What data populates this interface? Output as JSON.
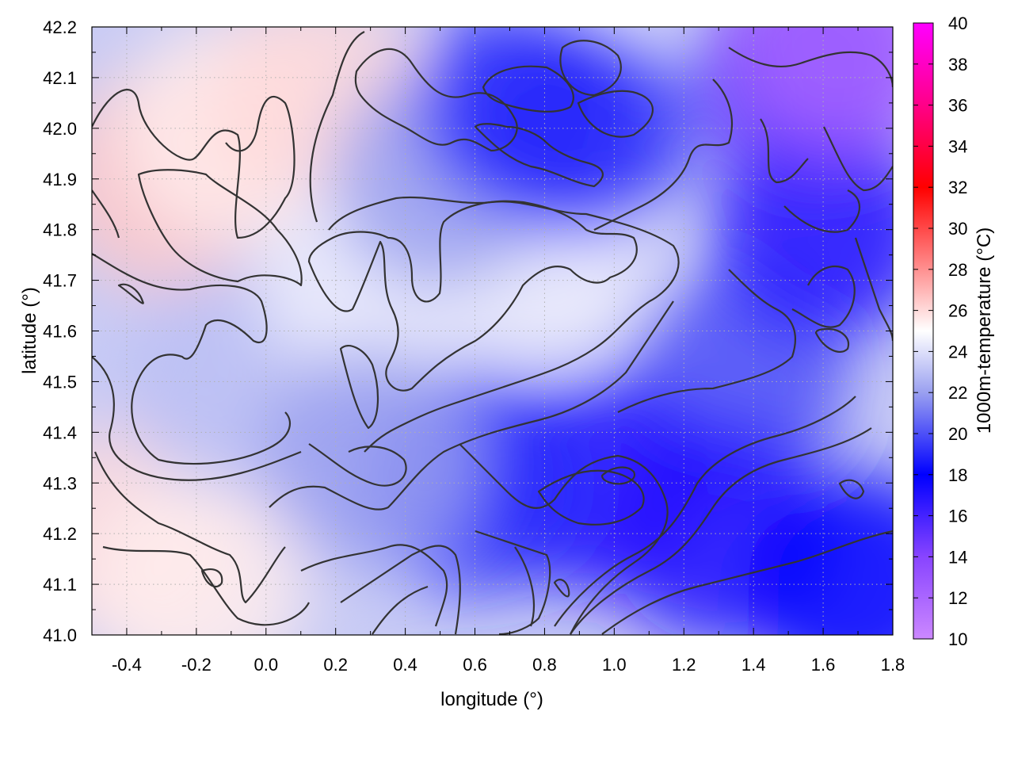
{
  "chart_data": {
    "type": "heatmap",
    "title": "",
    "xlabel": "longitude (°)",
    "ylabel": "latitude (°)",
    "colorbar_label": "1000m-temperature (°C)",
    "xlim": [
      -0.5,
      1.8
    ],
    "ylim": [
      41.0,
      42.2
    ],
    "x_ticks": [
      -0.4,
      -0.2,
      0.0,
      0.2,
      0.4,
      0.6,
      0.8,
      1.0,
      1.2,
      1.4,
      1.6,
      1.8
    ],
    "x_tick_labels": [
      "-0.4",
      "-0.2",
      "0.0",
      "0.2",
      "0.4",
      "0.6",
      "0.8",
      "1.0",
      "1.2",
      "1.4",
      "1.6",
      "1.8"
    ],
    "y_ticks": [
      41.0,
      41.1,
      41.2,
      41.3,
      41.4,
      41.5,
      41.6,
      41.7,
      41.8,
      41.9,
      42.0,
      42.1,
      42.2
    ],
    "y_tick_labels": [
      "41.0",
      "41.1",
      "41.2",
      "41.3",
      "41.4",
      "41.5",
      "41.6",
      "41.7",
      "41.8",
      "41.9",
      "42.0",
      "42.1",
      "42.2"
    ],
    "colorbar_range": [
      10,
      40
    ],
    "colorbar_ticks": [
      10,
      12,
      14,
      16,
      18,
      20,
      22,
      24,
      26,
      28,
      30,
      32,
      34,
      36,
      38,
      40
    ],
    "colorbar_tick_labels": [
      "10",
      "12",
      "14",
      "16",
      "18",
      "20",
      "22",
      "24",
      "26",
      "28",
      "30",
      "32",
      "34",
      "36",
      "38",
      "40"
    ],
    "colormap": [
      {
        "value": 10,
        "color": "#cc88ff"
      },
      {
        "value": 14,
        "color": "#8844ff"
      },
      {
        "value": 18,
        "color": "#0000ff"
      },
      {
        "value": 22,
        "color": "#9aa0f0"
      },
      {
        "value": 25,
        "color": "#ffffff"
      },
      {
        "value": 28,
        "color": "#ff9090"
      },
      {
        "value": 32,
        "color": "#ff0000"
      },
      {
        "value": 36,
        "color": "#ff0088"
      },
      {
        "value": 40,
        "color": "#ff00ff"
      }
    ],
    "grid": true,
    "contours": true,
    "regions": [
      {
        "lon": -0.3,
        "lat": 41.9,
        "temp": 26.5
      },
      {
        "lon": -0.1,
        "lat": 42.0,
        "temp": 25.5
      },
      {
        "lon": 0.15,
        "lat": 42.05,
        "temp": 26
      },
      {
        "lon": -0.4,
        "lat": 41.2,
        "temp": 26
      },
      {
        "lon": -0.2,
        "lat": 41.1,
        "temp": 25.5
      },
      {
        "lon": -0.1,
        "lat": 41.5,
        "temp": 23
      },
      {
        "lon": 0.3,
        "lat": 41.7,
        "temp": 24.5
      },
      {
        "lon": 0.8,
        "lat": 41.75,
        "temp": 24.5
      },
      {
        "lon": 0.85,
        "lat": 42.1,
        "temp": 25
      },
      {
        "lon": 0.5,
        "lat": 41.9,
        "temp": 22
      },
      {
        "lon": 0.75,
        "lat": 42.05,
        "temp": 19
      },
      {
        "lon": 0.9,
        "lat": 42.0,
        "temp": 19
      },
      {
        "lon": 1.35,
        "lat": 41.5,
        "temp": 20
      },
      {
        "lon": 1.6,
        "lat": 41.8,
        "temp": 17
      },
      {
        "lon": 1.55,
        "lat": 42.1,
        "temp": 16
      },
      {
        "lon": 1.65,
        "lat": 42.17,
        "temp": 12
      },
      {
        "lon": 0.95,
        "lat": 41.3,
        "temp": 17
      },
      {
        "lon": 1.3,
        "lat": 41.2,
        "temp": 17
      },
      {
        "lon": 1.7,
        "lat": 41.1,
        "temp": 18
      },
      {
        "lon": 0.6,
        "lat": 41.3,
        "temp": 19
      },
      {
        "lon": 0.3,
        "lat": 41.35,
        "temp": 22
      }
    ]
  }
}
